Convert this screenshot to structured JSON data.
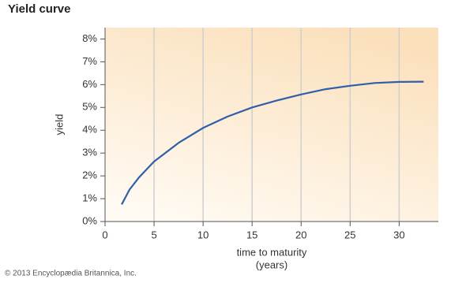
{
  "chart_data": {
    "type": "line",
    "title": "Yield curve",
    "ylabel": "yield",
    "xlabel": [
      "time to maturity",
      "(years)"
    ],
    "credit": "© 2013 Encyclopædia Britannica, Inc.",
    "x": [
      1.7,
      2.5,
      3.5,
      5,
      7.5,
      10,
      12.5,
      15,
      17.5,
      20,
      22.5,
      25,
      27.5,
      30,
      32.5
    ],
    "values": [
      0.75,
      1.4,
      1.95,
      2.63,
      3.45,
      4.1,
      4.6,
      5.0,
      5.3,
      5.57,
      5.8,
      5.95,
      6.07,
      6.12,
      6.13
    ],
    "color": "#2f5fa8",
    "xlim": [
      0,
      34
    ],
    "xticks": [
      0,
      5,
      10,
      15,
      20,
      25,
      30
    ],
    "ylim": [
      0,
      8.5
    ],
    "yticks": [
      {
        "value": 0,
        "label": "0%"
      },
      {
        "value": 1,
        "label": "1%"
      },
      {
        "value": 2,
        "label": "2%"
      },
      {
        "value": 3,
        "label": "3%"
      },
      {
        "value": 4,
        "label": "4%"
      },
      {
        "value": 5,
        "label": "5%"
      },
      {
        "value": 6,
        "label": "6%"
      },
      {
        "value": 7,
        "label": "7%"
      },
      {
        "value": 8,
        "label": "8%"
      }
    ],
    "grid": true
  }
}
